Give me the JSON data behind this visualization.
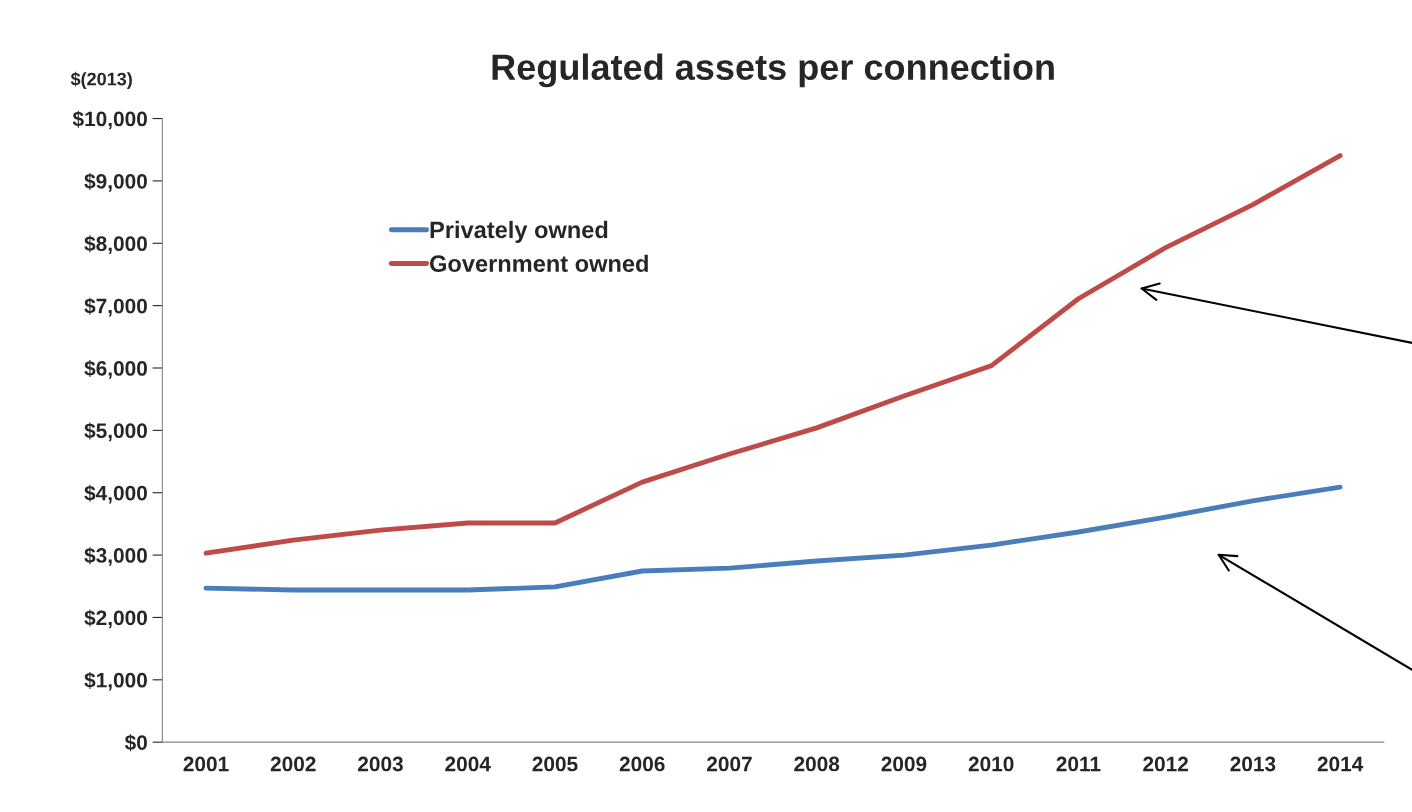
{
  "chart_data": {
    "type": "line",
    "title": "Regulated assets per connection",
    "ylabel": "$(2013)",
    "categories": [
      "2001",
      "2002",
      "2003",
      "2004",
      "2005",
      "2006",
      "2007",
      "2008",
      "2009",
      "2010",
      "2011",
      "2012",
      "2013",
      "2014"
    ],
    "series": [
      {
        "name": "Privately owned",
        "color": "#4a7ebb",
        "values": [
          2470,
          2440,
          2440,
          2440,
          2490,
          2745,
          2790,
          2905,
          3000,
          3160,
          3370,
          3610,
          3870,
          4090
        ]
      },
      {
        "name": "Government owned",
        "color": "#be4b48",
        "values": [
          3030,
          3240,
          3400,
          3515,
          3515,
          4170,
          4620,
          5040,
          5550,
          6035,
          7110,
          7930,
          8620,
          9405
        ]
      }
    ],
    "ylim": [
      0,
      10000
    ],
    "yticks": [
      {
        "value": 0,
        "label": "$0"
      },
      {
        "value": 1000,
        "label": "$1,000"
      },
      {
        "value": 2000,
        "label": "$2,000"
      },
      {
        "value": 3000,
        "label": "$3,000"
      },
      {
        "value": 4000,
        "label": "$4,000"
      },
      {
        "value": 5000,
        "label": "$5,000"
      },
      {
        "value": 6000,
        "label": "$6,000"
      },
      {
        "value": 7000,
        "label": "$7,000"
      },
      {
        "value": 8000,
        "label": "$8,000"
      },
      {
        "value": 9000,
        "label": "$9,000"
      },
      {
        "value": 10000,
        "label": "$10,000"
      }
    ],
    "grid": false,
    "legend": "top left",
    "marker": "none",
    "line_style": "solid"
  }
}
